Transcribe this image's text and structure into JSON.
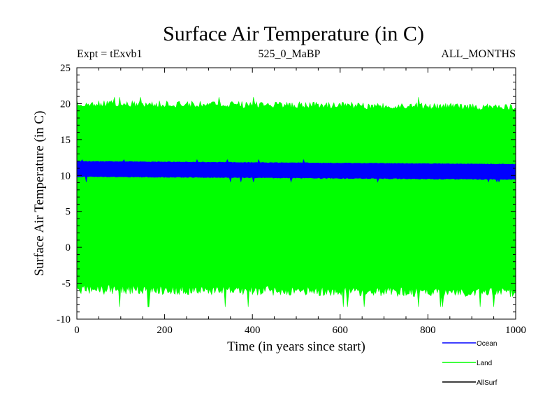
{
  "chart_data": {
    "type": "area",
    "title": "Surface Air Temperature (in C)",
    "subtitle_left": "Expt = tExvb1",
    "subtitle_center": "525_0_MaBP",
    "subtitle_right": "ALL_MONTHS",
    "xlabel": "Time (in years since start)",
    "ylabel": "Surface Air Temperature (in C)",
    "xlim": [
      0,
      1000
    ],
    "ylim": [
      -10,
      25
    ],
    "xticks": [
      0,
      200,
      400,
      600,
      800,
      1000
    ],
    "yticks": [
      -10,
      -5,
      0,
      5,
      10,
      15,
      20,
      25
    ],
    "xtick_labels": [
      "0",
      "200",
      "400",
      "600",
      "800",
      "1000"
    ],
    "ytick_labels": [
      "-10",
      "-5",
      "0",
      "5",
      "10",
      "15",
      "20",
      "25"
    ],
    "series": [
      {
        "name": "Land",
        "color": "#00ff00",
        "x": [
          0,
          1000
        ],
        "min": [
          -6.5,
          -7.0
        ],
        "max": [
          20.5,
          20.0
        ],
        "spike_min": -8.3,
        "spike_max": 20.9
      },
      {
        "name": "Ocean",
        "color": "#0000ff",
        "x": [
          0,
          1000
        ],
        "min": [
          9.8,
          9.4
        ],
        "max": [
          12.0,
          11.6
        ],
        "spike_min": 9.1,
        "spike_max": 12.2
      },
      {
        "name": "AllSurf",
        "color": "#000000",
        "x": [],
        "min": [],
        "max": []
      }
    ],
    "legend": [
      {
        "label": "Ocean",
        "color": "#0000ff"
      },
      {
        "label": "Land",
        "color": "#00ff00"
      },
      {
        "label": "AllSurf",
        "color": "#000000"
      }
    ]
  }
}
